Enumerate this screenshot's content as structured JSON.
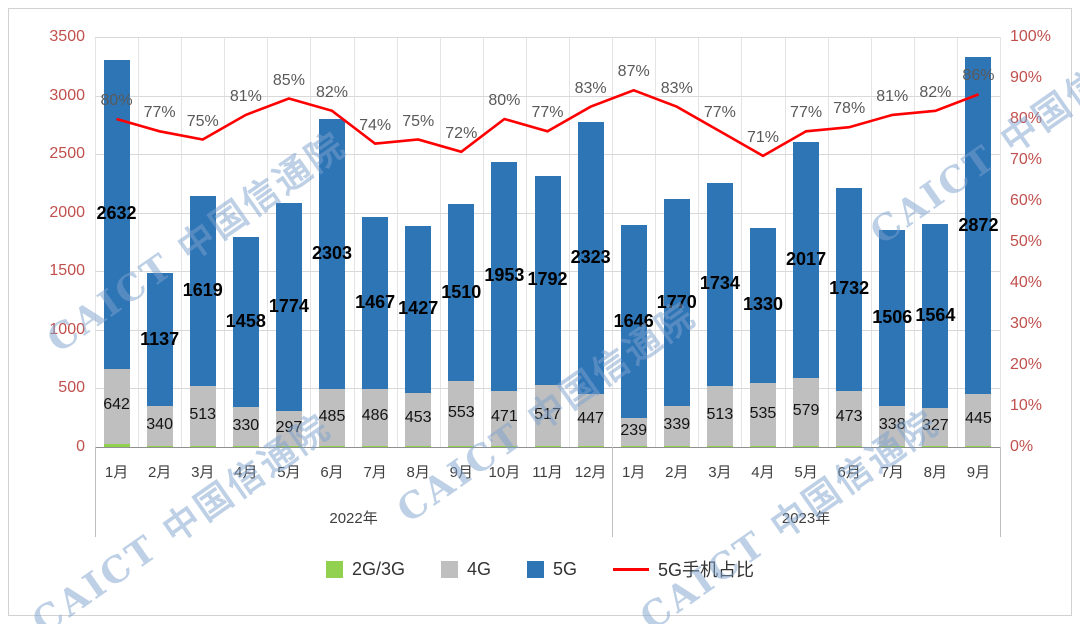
{
  "watermark": {
    "text": "CAICT 中国信通院"
  },
  "axes": {
    "left_ticks": [
      "3500",
      "3000",
      "2500",
      "2000",
      "1500",
      "1000",
      "500",
      "0"
    ],
    "right_ticks": [
      "100%",
      "90%",
      "80%",
      "70%",
      "60%",
      "50%",
      "40%",
      "30%",
      "20%",
      "10%",
      "0%"
    ]
  },
  "chart_data": {
    "type": "bar",
    "subtype": "stacked-column-with-line",
    "title": "",
    "xlabel": "",
    "ylabel": "",
    "ylim": [
      0,
      3500
    ],
    "y2lim": [
      0,
      100
    ],
    "grid": true,
    "legend_position": "bottom",
    "categories": [
      "1月",
      "2月",
      "3月",
      "4月",
      "5月",
      "6月",
      "7月",
      "8月",
      "9月",
      "10月",
      "11月",
      "12月",
      "1月",
      "2月",
      "3月",
      "4月",
      "5月",
      "6月",
      "7月",
      "8月",
      "9月"
    ],
    "category_groups": [
      {
        "label": "2022年",
        "span": 12
      },
      {
        "label": "2023年",
        "span": 9
      }
    ],
    "series": [
      {
        "name": "2G/3G",
        "color": "#92D050",
        "estimated": true,
        "values": [
          28,
          9,
          9,
          8,
          9,
          8,
          9,
          8,
          9,
          8,
          8,
          8,
          8,
          8,
          8,
          8,
          8,
          8,
          8,
          8,
          8
        ]
      },
      {
        "name": "4G",
        "color": "#BFBFBF",
        "values": [
          642,
          340,
          513,
          330,
          297,
          485,
          486,
          453,
          553,
          471,
          517,
          447,
          239,
          339,
          513,
          535,
          579,
          473,
          338,
          327,
          445
        ]
      },
      {
        "name": "5G",
        "color": "#2E75B6",
        "values": [
          2632,
          1137,
          1619,
          1458,
          1774,
          2303,
          1467,
          1427,
          1510,
          1953,
          1792,
          2323,
          1646,
          1770,
          1734,
          1330,
          2017,
          1732,
          1506,
          1564,
          2872
        ]
      }
    ],
    "line_series": {
      "name": "5G手机占比",
      "color": "#FF0000",
      "unit": "%",
      "values": [
        80,
        77,
        75,
        81,
        85,
        82,
        74,
        75,
        72,
        80,
        77,
        83,
        87,
        83,
        77,
        71,
        77,
        78,
        81,
        82,
        86
      ]
    }
  },
  "legend": {
    "items": [
      {
        "label": "2G/3G",
        "swatch": "square",
        "color": "#92D050"
      },
      {
        "label": "4G",
        "swatch": "square",
        "color": "#BFBFBF"
      },
      {
        "label": "5G",
        "swatch": "square",
        "color": "#2E75B6"
      },
      {
        "label": "5G手机占比",
        "swatch": "line",
        "color": "#FF0000"
      }
    ]
  }
}
